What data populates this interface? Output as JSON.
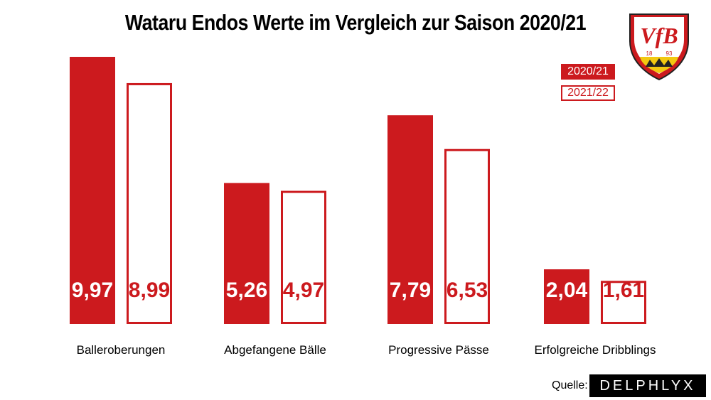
{
  "chart_data": {
    "type": "bar",
    "title": "Wataru Endos Werte im Vergleich zur Saison 2020/21",
    "categories": [
      "Balleroberungen",
      "Abgefangene Bälle",
      "Progressive Pässe",
      "Erfolgreiche Dribblings"
    ],
    "series": [
      {
        "name": "2020/21",
        "values": [
          9.97,
          5.26,
          7.79,
          2.04
        ],
        "labels": [
          "9,97",
          "5,26",
          "7,79",
          "2,04"
        ],
        "style": "filled"
      },
      {
        "name": "2021/22",
        "values": [
          8.99,
          4.97,
          6.53,
          1.61
        ],
        "labels": [
          "8,99",
          "4,97",
          "6,53",
          "1,61"
        ],
        "style": "outline"
      }
    ],
    "ylim": [
      0,
      10.5
    ],
    "grid": false,
    "legend": "top-right",
    "bar_color": "#cc1a1e"
  },
  "logo": {
    "name": "vfb-stuttgart-crest",
    "text": "VfB",
    "year_left": "18",
    "year_right": "93"
  },
  "source": {
    "label": "Quelle:",
    "name": "DELPHLYX"
  }
}
